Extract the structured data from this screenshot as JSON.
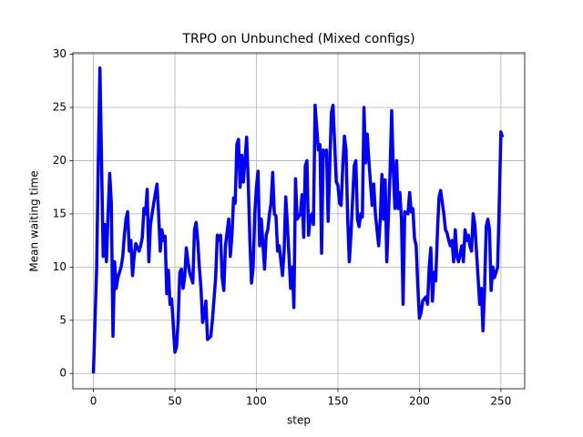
{
  "chart_data": {
    "type": "line",
    "title": "TRPO on Unbunched (Mixed configs)",
    "x_label": "step",
    "y_label": "Mean waiting time",
    "x": [
      0,
      1,
      2,
      3,
      4,
      6,
      7,
      8,
      9,
      10,
      11,
      12,
      13,
      14,
      15,
      17,
      18,
      19,
      20,
      21,
      22,
      23,
      24,
      25,
      26,
      28,
      29,
      30,
      31,
      32,
      33,
      34,
      35,
      36,
      37,
      39,
      40,
      41,
      42,
      43,
      44,
      45,
      46,
      47,
      48,
      50,
      51,
      52,
      53,
      54,
      55,
      56,
      57,
      58,
      59,
      61,
      62,
      63,
      64,
      65,
      66,
      67,
      68,
      69,
      70,
      72,
      73,
      74,
      75,
      76,
      77,
      78,
      79,
      80,
      81,
      83,
      84,
      85,
      86,
      87,
      88,
      89,
      90,
      91,
      92,
      94,
      95,
      96,
      97,
      98,
      99,
      100,
      101,
      102,
      103,
      105,
      106,
      107,
      108,
      109,
      110,
      111,
      112,
      113,
      114,
      116,
      117,
      118,
      119,
      120,
      121,
      122,
      123,
      124,
      125,
      127,
      128,
      129,
      130,
      131,
      132,
      133,
      134,
      135,
      136,
      138,
      139,
      140,
      141,
      142,
      143,
      144,
      145,
      146,
      147,
      149,
      150,
      151,
      152,
      153,
      154,
      155,
      156,
      157,
      158,
      160,
      161,
      162,
      163,
      164,
      165,
      166,
      167,
      168,
      169,
      171,
      172,
      173,
      174,
      175,
      176,
      177,
      178,
      179,
      180,
      182,
      183,
      184,
      185,
      186,
      187,
      188,
      189,
      190,
      191,
      193,
      194,
      195,
      196,
      197,
      198,
      199,
      200,
      201,
      202,
      204,
      205,
      206,
      207,
      208,
      209,
      210,
      211,
      212,
      213,
      215,
      216,
      217,
      218,
      219,
      220,
      221,
      222,
      223,
      224,
      226,
      227,
      228,
      229,
      230,
      231,
      232,
      233,
      234,
      235,
      237,
      238,
      239,
      240,
      241,
      242,
      243,
      244,
      245,
      246,
      248,
      249,
      250,
      251
    ],
    "series": [
      {
        "name": "TRPO",
        "color": "#0000ff",
        "values": [
          0,
          5,
          10,
          20,
          28.7,
          11,
          14,
          10.5,
          15,
          18.8,
          16,
          3.5,
          10.5,
          8,
          9,
          10,
          11,
          13,
          14.5,
          15.2,
          11.5,
          12.5,
          9.2,
          11,
          12.2,
          11.5,
          12,
          12.8,
          15.5,
          15,
          17.3,
          10.5,
          14,
          15,
          16,
          17.8,
          15,
          11.5,
          13.5,
          12.5,
          12.9,
          7.5,
          9.7,
          6.5,
          7,
          2,
          2.5,
          5,
          9.5,
          9.8,
          8,
          9,
          11.8,
          10.5,
          9.5,
          8.5,
          13.5,
          14.2,
          12.5,
          10,
          8,
          4.8,
          5.5,
          6.8,
          3.2,
          3.5,
          5,
          7,
          9,
          13,
          12.5,
          13,
          9,
          7.8,
          12,
          14.5,
          11,
          13,
          16.5,
          16,
          21.5,
          22,
          17.5,
          20.5,
          18,
          22.2,
          18,
          12.5,
          8.5,
          10,
          15,
          17.5,
          19,
          12,
          14.5,
          9.8,
          13,
          13.5,
          15,
          16,
          18.9,
          15,
          14.8,
          11.5,
          12,
          9.2,
          11.5,
          16.6,
          14,
          11,
          8,
          10,
          6.2,
          18.3,
          14.5,
          15,
          16.8,
          12.8,
          19.5,
          20,
          13,
          14.5,
          15,
          14,
          25.2,
          21,
          21.5,
          11.3,
          21,
          20.5,
          21,
          14.3,
          19.5,
          24.5,
          25.2,
          18,
          17.7,
          16,
          15.8,
          19.5,
          22.3,
          21,
          14.5,
          10.5,
          13,
          19.5,
          20,
          14.5,
          13.8,
          15,
          14.7,
          25,
          19.8,
          22.5,
          20,
          15.8,
          17.8,
          15,
          13.5,
          12,
          14.5,
          18.7,
          14.5,
          18.2,
          10.5,
          19,
          24.7,
          19,
          15.5,
          20,
          15.5,
          17,
          14.5,
          6.5,
          15.2,
          15,
          17,
          15.2,
          15.5,
          12.7,
          12,
          8.3,
          5.2,
          5.7,
          6.8,
          7.2,
          6.5,
          10,
          11.8,
          6.8,
          9.5,
          8.7,
          13,
          16.5,
          17.2,
          15,
          13.5,
          13.2,
          12.5,
          12,
          12.5,
          10.5,
          13.5,
          11,
          10.5,
          12,
          10.5,
          13.5,
          12.5,
          13,
          12,
          11.5,
          15,
          14,
          11.5,
          6.5,
          8,
          4,
          8,
          13.8,
          14.5,
          13.5,
          7.8,
          10,
          9,
          10,
          16,
          22.7,
          22.2
        ]
      }
    ],
    "xlim": [
      -12.6,
      264.6
    ],
    "ylim": [
      -1.435,
      30.135
    ],
    "xticks": [
      0,
      50,
      100,
      150,
      200,
      250
    ],
    "yticks": [
      0,
      5,
      10,
      15,
      20,
      25,
      30
    ],
    "grid": true
  }
}
